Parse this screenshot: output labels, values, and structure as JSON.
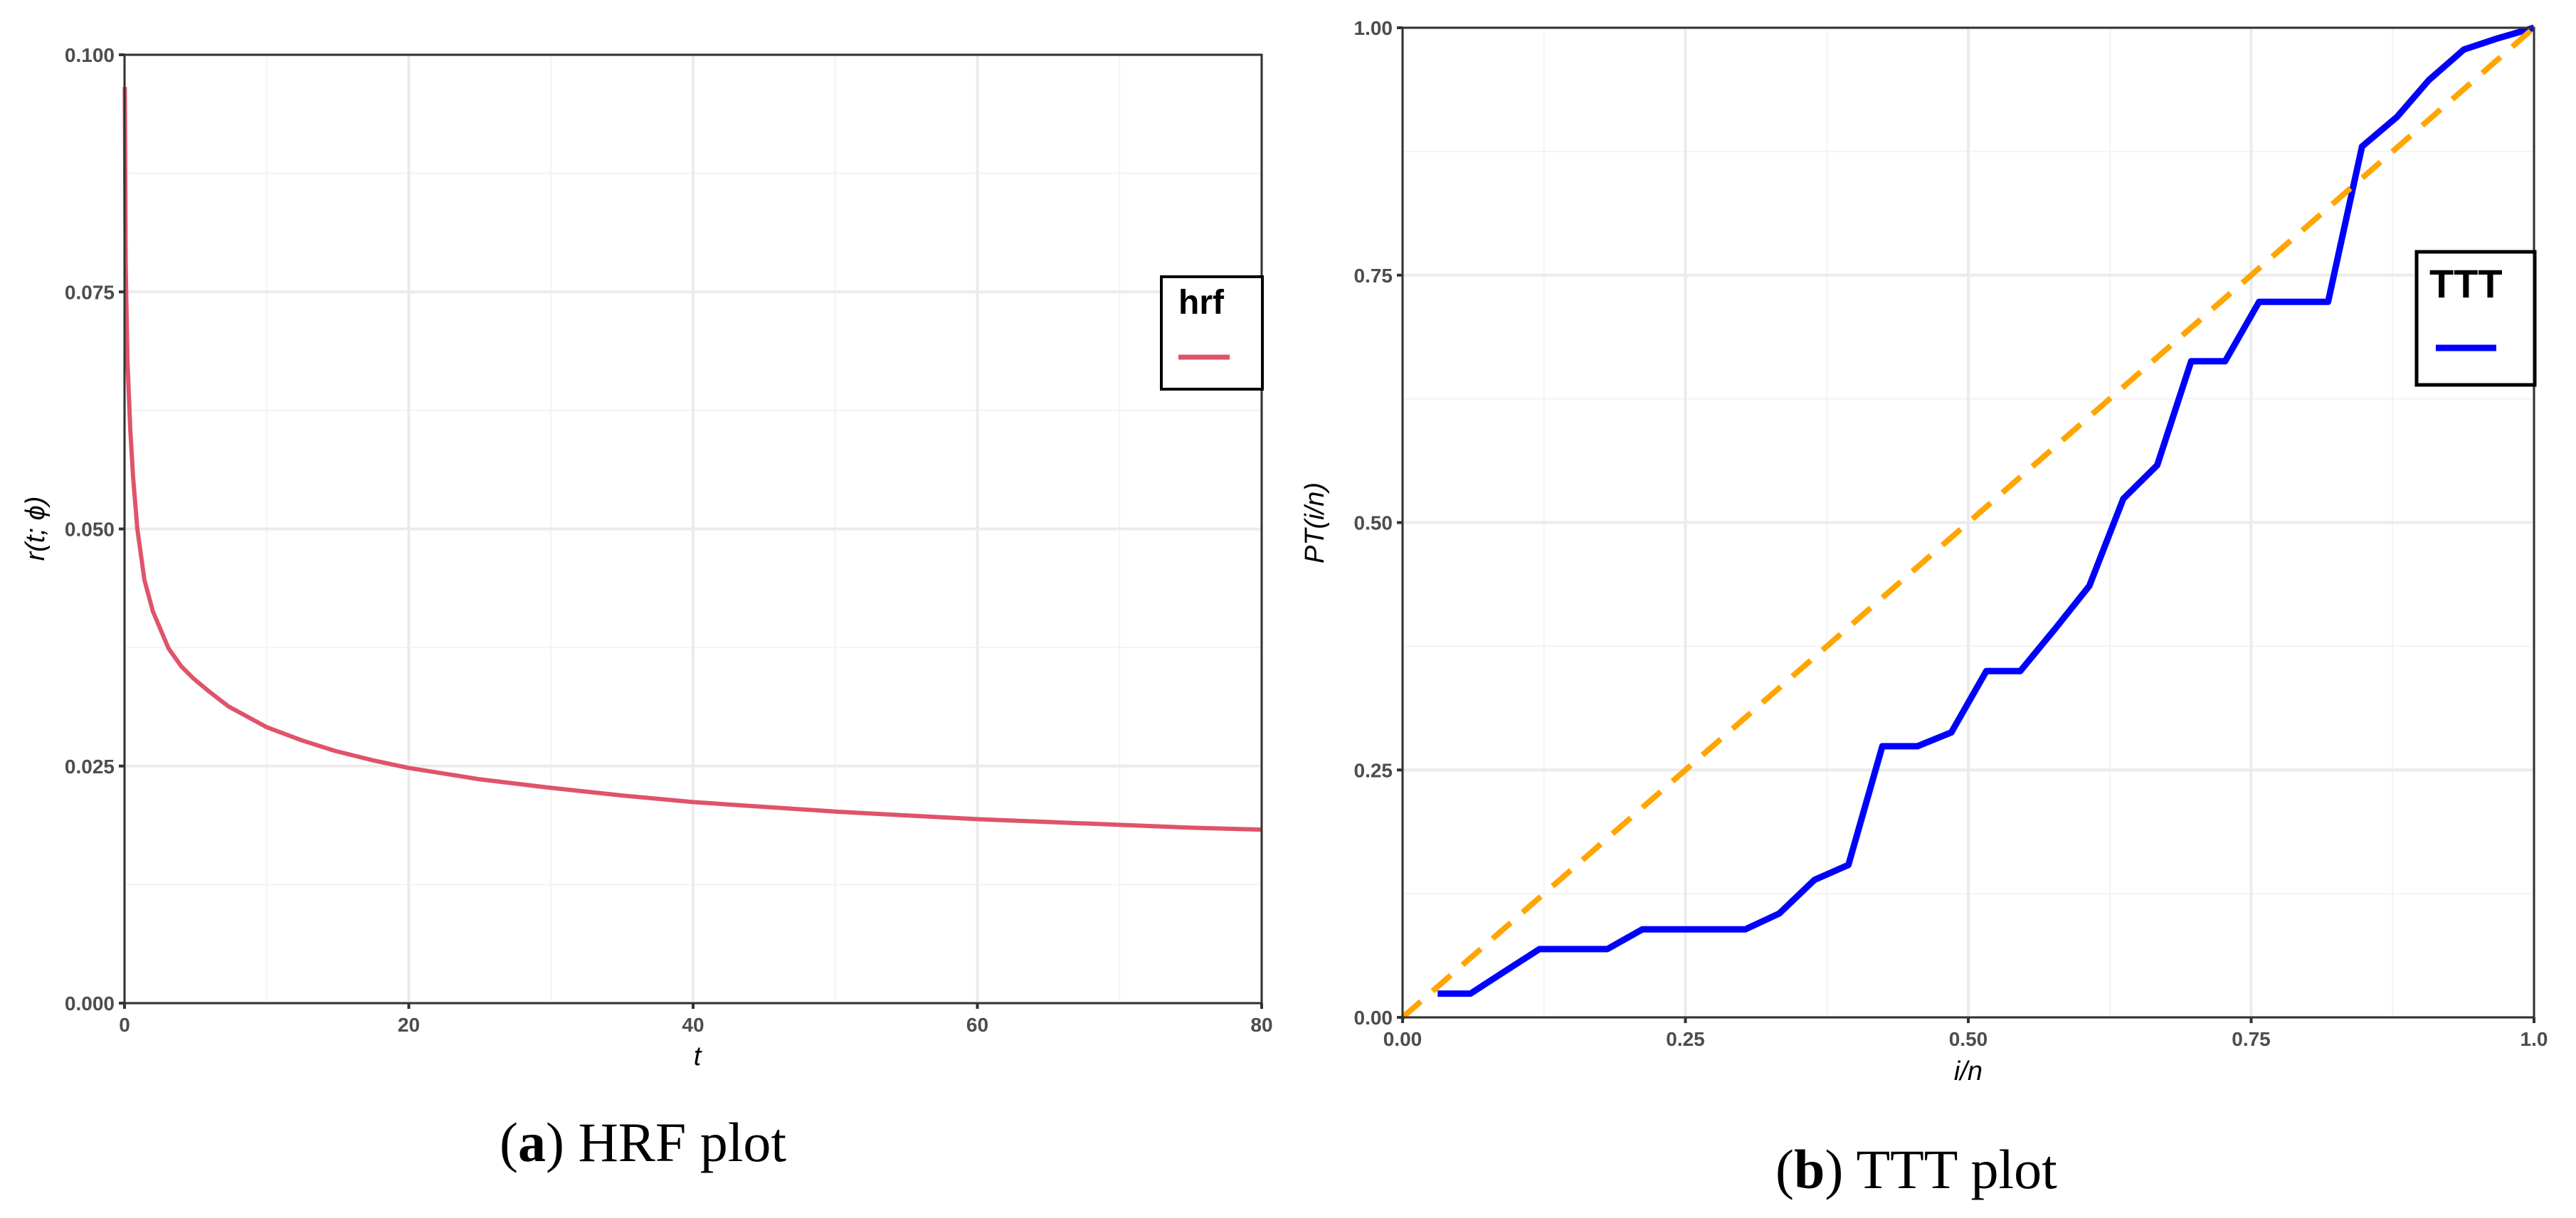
{
  "figure": {
    "panels": [
      {
        "id": "a",
        "caption_letter": "a",
        "caption_text": "HRF plot",
        "legend_title": "hrf"
      },
      {
        "id": "b",
        "caption_letter": "b",
        "caption_text": "TTT plot",
        "legend_title": "TTT"
      }
    ]
  },
  "colors": {
    "hrf_line": "#DF536B",
    "ttt_line": "#0000FF",
    "diagonal": "#FFA500",
    "grid_major": "#EBEBEB",
    "grid_minor": "#F3F3F3",
    "axis": "#333333",
    "tick_text": "#4D4D4D"
  },
  "chart_data": [
    {
      "type": "line",
      "title": "(a) HRF plot",
      "xlabel": "t",
      "ylabel": "r(t; ϕ)",
      "xlim": [
        0,
        80
      ],
      "ylim": [
        0,
        0.1
      ],
      "x_ticks": [
        0,
        20,
        40,
        60,
        80
      ],
      "x_tick_labels": [
        "0",
        "20",
        "40",
        "60",
        "80"
      ],
      "y_ticks": [
        0,
        0.025,
        0.05,
        0.075,
        0.1
      ],
      "y_tick_labels": [
        "0.000",
        "0.025",
        "0.050",
        "0.075",
        "0.100"
      ],
      "grid": true,
      "legend": {
        "title": "hrf",
        "position": "right",
        "entries": [
          ""
        ]
      },
      "series": [
        {
          "name": "hrf",
          "color": "#DF536B",
          "x": [
            0.02,
            0.08,
            0.2,
            0.4,
            0.6,
            0.9,
            1.4,
            2.0,
            3.1,
            4.0,
            4.8,
            6.0,
            7.3,
            10,
            12.5,
            14.8,
            17.5,
            20,
            25,
            30,
            35,
            40,
            45,
            50,
            55,
            60,
            65,
            70,
            75,
            80
          ],
          "y": [
            0.0966,
            0.0779,
            0.068,
            0.0606,
            0.0555,
            0.05,
            0.0446,
            0.0413,
            0.0374,
            0.0355,
            0.0343,
            0.0328,
            0.0313,
            0.0291,
            0.0277,
            0.0266,
            0.0256,
            0.0248,
            0.0236,
            0.0227,
            0.0219,
            0.0212,
            0.0207,
            0.0202,
            0.0198,
            0.0194,
            0.0191,
            0.0188,
            0.0185,
            0.0183
          ]
        }
      ]
    },
    {
      "type": "line",
      "title": "(b) TTT plot",
      "xlabel": "i/n",
      "ylabel": "PT(i/n)",
      "xlim": [
        0,
        1
      ],
      "ylim": [
        0,
        1
      ],
      "x_ticks": [
        0,
        0.25,
        0.5,
        0.75,
        1.0
      ],
      "x_tick_labels": [
        "0.00",
        "0.25",
        "0.50",
        "0.75",
        "1.0"
      ],
      "y_ticks": [
        0,
        0.25,
        0.5,
        0.75,
        1.0
      ],
      "y_tick_labels": [
        "0.00",
        "0.25",
        "0.50",
        "0.75",
        "1.00"
      ],
      "grid": true,
      "legend": {
        "title": "TTT",
        "position": "right",
        "entries": [
          ""
        ]
      },
      "series": [
        {
          "name": "TTT",
          "color": "#0000FF",
          "style": "solid",
          "x": [
            0.031,
            0.06,
            0.091,
            0.121,
            0.151,
            0.181,
            0.212,
            0.242,
            0.273,
            0.303,
            0.333,
            0.364,
            0.394,
            0.424,
            0.455,
            0.485,
            0.516,
            0.546,
            0.577,
            0.607,
            0.637,
            0.667,
            0.697,
            0.727,
            0.757,
            0.788,
            0.818,
            0.848,
            0.879,
            0.907,
            0.938,
            0.967,
            1.0
          ],
          "y": [
            0.024,
            0.024,
            0.047,
            0.069,
            0.069,
            0.069,
            0.089,
            0.089,
            0.089,
            0.089,
            0.105,
            0.139,
            0.154,
            0.274,
            0.274,
            0.288,
            0.35,
            0.35,
            0.393,
            0.436,
            0.524,
            0.558,
            0.663,
            0.663,
            0.723,
            0.723,
            0.723,
            0.88,
            0.91,
            0.947,
            0.978,
            0.989,
            1.0
          ]
        },
        {
          "name": "reference diagonal",
          "color": "#FFA500",
          "style": "dashed",
          "x": [
            0,
            1
          ],
          "y": [
            0,
            1
          ]
        }
      ]
    }
  ]
}
